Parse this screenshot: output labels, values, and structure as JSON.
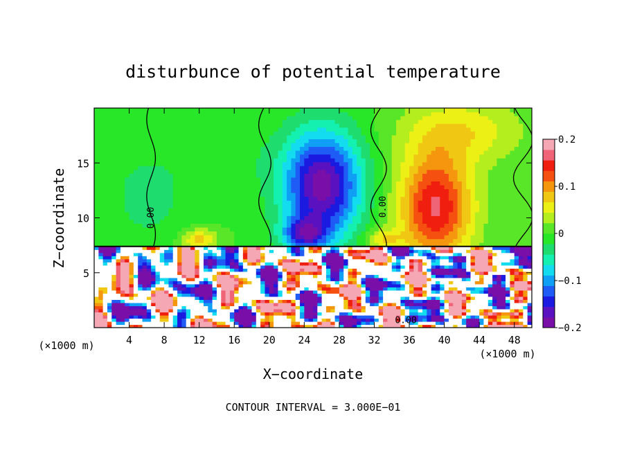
{
  "chart_data": {
    "type": "heatmap",
    "title": "disturbunce of potential temperature",
    "xlabel": "X−coordinate",
    "ylabel": "Z−coordinate",
    "x_unit": "(×1000 m)",
    "y_unit": "(×1000 m)",
    "xlim": [
      0,
      50
    ],
    "ylim": [
      0,
      20
    ],
    "x_ticks": [
      4,
      8,
      12,
      16,
      20,
      24,
      28,
      32,
      36,
      40,
      44,
      48
    ],
    "y_ticks": [
      5,
      10,
      15
    ],
    "x_tick_labels": [
      "4",
      "8",
      "12",
      "16",
      "20",
      "24",
      "28",
      "32",
      "36",
      "40",
      "44",
      "48"
    ],
    "y_tick_labels": [
      "5",
      "10",
      "15"
    ],
    "colorbar": {
      "range": [
        -0.2,
        0.2
      ],
      "ticks": [
        0.2,
        0.1,
        0,
        -0.1,
        -0.2
      ],
      "tick_labels": [
        "0.2",
        "0.1",
        "0",
        "−0.1",
        "−0.2"
      ],
      "colors": [
        "#7a0fa8",
        "#5a12c0",
        "#1a1ae0",
        "#1e5cf5",
        "#0f9ff5",
        "#14dcf0",
        "#14f0b0",
        "#1edc6e",
        "#28e628",
        "#5ae628",
        "#b4ee1e",
        "#ecf014",
        "#f0c814",
        "#f5960f",
        "#f5500f",
        "#f01e0f",
        "#f06478",
        "#f5a8b4"
      ]
    },
    "contour_labels": [
      "0.00",
      "0.00",
      "0.00"
    ],
    "footer": "CONTOUR INTERVAL = 3.000E−01",
    "features": [
      {
        "x": 26,
        "z": 13,
        "value": -0.19,
        "sx": 4.5,
        "sz": 5
      },
      {
        "x": 24,
        "z": 8.5,
        "value": -0.12,
        "sx": 2.5,
        "sz": 1.5
      },
      {
        "x": 39,
        "z": 11,
        "value": 0.16,
        "sx": 4.2,
        "sz": 5
      },
      {
        "x": 42,
        "z": 18,
        "value": 0.06,
        "sx": 7,
        "sz": 3
      },
      {
        "x": 6,
        "z": 12,
        "value": -0.03,
        "sx": 5,
        "sz": 5
      },
      {
        "x": 15,
        "z": 16,
        "value": -0.02,
        "sx": 5,
        "sz": 4
      },
      {
        "x": 12,
        "z": 8,
        "value": 0.08,
        "sx": 2,
        "sz": 1
      },
      {
        "x": 33,
        "z": 8,
        "value": 0.06,
        "sx": 2,
        "sz": 1
      }
    ]
  }
}
